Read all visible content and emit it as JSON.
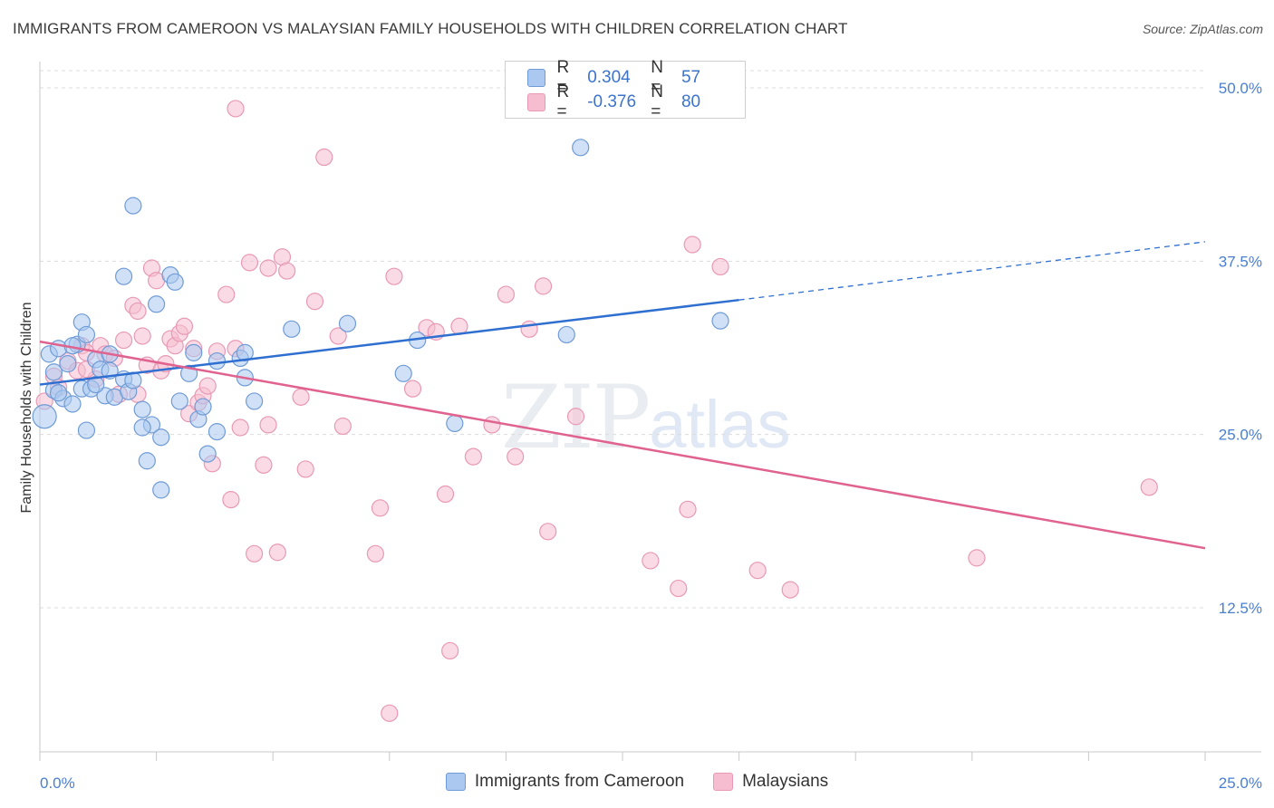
{
  "title": "IMMIGRANTS FROM CAMEROON VS MALAYSIAN FAMILY HOUSEHOLDS WITH CHILDREN CORRELATION CHART",
  "source": "Source: ZipAtlas.com",
  "watermark": {
    "zip": "ZIP",
    "atlas": "atlas"
  },
  "legend": [
    {
      "r_label": "R =",
      "r_value": "0.304",
      "n_label": "N =",
      "n_value": "57"
    },
    {
      "r_label": "R =",
      "r_value": "-0.376",
      "n_label": "N =",
      "n_value": "80"
    }
  ],
  "colors": {
    "blue_fill": "#aac8f0",
    "blue_stroke": "#6f9bd6",
    "blue_line": "#2f6fd0",
    "pink_fill": "#f6bdd0",
    "pink_stroke": "#e899b5",
    "pink_line": "#e0628e",
    "grid": "#dcdcdc",
    "tick_text": "#4a7fd0"
  },
  "chart_data": {
    "type": "scatter",
    "title": "IMMIGRANTS FROM CAMEROON VS MALAYSIAN FAMILY HOUSEHOLDS WITH CHILDREN CORRELATION CHART",
    "xlabel": "",
    "ylabel": "Family Households with Children",
    "xlim": [
      0,
      25
    ],
    "ylim": [
      0,
      52
    ],
    "x_tick_labels": [
      "0.0%",
      "25.0%"
    ],
    "y_ticks": [
      12.5,
      25.0,
      37.5,
      50.0
    ],
    "y_tick_labels": [
      "12.5%",
      "25.0%",
      "37.5%",
      "50.0%"
    ],
    "grid": true,
    "legend_position": "bottom",
    "series": [
      {
        "name": "Immigrants from Cameroon",
        "color": "#aac8f0",
        "trend": {
          "x_start": 0,
          "y_start": 28.6,
          "x_solid_end": 15.0,
          "y_solid_end": 34.7,
          "x_end": 25.0,
          "y_end": 38.9
        },
        "points": [
          [
            0.1,
            26.3
          ],
          [
            0.2,
            30.8
          ],
          [
            0.3,
            28.2
          ],
          [
            0.3,
            29.5
          ],
          [
            0.4,
            31.2
          ],
          [
            0.5,
            27.6
          ],
          [
            0.6,
            30.1
          ],
          [
            0.7,
            27.2
          ],
          [
            0.8,
            31.5
          ],
          [
            0.9,
            33.1
          ],
          [
            0.9,
            28.3
          ],
          [
            1.0,
            32.2
          ],
          [
            1.1,
            28.3
          ],
          [
            1.2,
            30.4
          ],
          [
            1.3,
            29.7
          ],
          [
            1.4,
            27.8
          ],
          [
            1.5,
            29.6
          ],
          [
            1.6,
            27.7
          ],
          [
            1.8,
            29.0
          ],
          [
            1.9,
            28.1
          ],
          [
            2.0,
            41.5
          ],
          [
            2.2,
            26.8
          ],
          [
            2.3,
            23.1
          ],
          [
            2.4,
            25.7
          ],
          [
            2.5,
            34.4
          ],
          [
            2.6,
            24.8
          ],
          [
            2.6,
            21.0
          ],
          [
            2.8,
            36.5
          ],
          [
            2.9,
            36.0
          ],
          [
            3.0,
            27.4
          ],
          [
            3.2,
            29.4
          ],
          [
            3.3,
            30.9
          ],
          [
            3.4,
            26.1
          ],
          [
            3.5,
            27.0
          ],
          [
            3.6,
            23.6
          ],
          [
            3.8,
            25.2
          ],
          [
            3.8,
            30.3
          ],
          [
            4.3,
            30.5
          ],
          [
            4.4,
            29.1
          ],
          [
            4.4,
            30.9
          ],
          [
            4.6,
            27.4
          ],
          [
            5.4,
            32.6
          ],
          [
            6.6,
            33.0
          ],
          [
            7.8,
            29.4
          ],
          [
            8.1,
            31.8
          ],
          [
            8.9,
            25.8
          ],
          [
            11.3,
            32.2
          ],
          [
            11.6,
            45.7
          ],
          [
            14.6,
            33.2
          ],
          [
            0.4,
            28.0
          ],
          [
            1.0,
            25.3
          ],
          [
            1.8,
            36.4
          ],
          [
            2.2,
            25.5
          ],
          [
            1.5,
            30.8
          ],
          [
            0.7,
            31.4
          ],
          [
            1.2,
            28.6
          ],
          [
            2.0,
            28.9
          ]
        ]
      },
      {
        "name": "Malaysians",
        "color": "#f6bdd0",
        "trend": {
          "x_start": 0,
          "y_start": 31.7,
          "x_end": 25.0,
          "y_end": 16.8
        },
        "points": [
          [
            0.1,
            27.4
          ],
          [
            0.3,
            29.2
          ],
          [
            0.4,
            28.4
          ],
          [
            0.6,
            30.3
          ],
          [
            0.8,
            29.6
          ],
          [
            0.9,
            31.4
          ],
          [
            1.0,
            30.9
          ],
          [
            1.2,
            29.0
          ],
          [
            1.3,
            31.4
          ],
          [
            1.4,
            30.8
          ],
          [
            1.6,
            30.5
          ],
          [
            1.7,
            27.9
          ],
          [
            1.8,
            31.8
          ],
          [
            2.0,
            34.3
          ],
          [
            2.1,
            33.9
          ],
          [
            2.2,
            32.1
          ],
          [
            2.3,
            30.0
          ],
          [
            2.4,
            37.0
          ],
          [
            2.5,
            36.1
          ],
          [
            2.6,
            29.6
          ],
          [
            2.7,
            30.1
          ],
          [
            2.8,
            31.9
          ],
          [
            2.9,
            31.4
          ],
          [
            3.0,
            32.3
          ],
          [
            3.1,
            32.8
          ],
          [
            3.2,
            26.5
          ],
          [
            3.3,
            31.2
          ],
          [
            3.4,
            27.3
          ],
          [
            3.5,
            27.8
          ],
          [
            3.6,
            28.5
          ],
          [
            3.7,
            22.9
          ],
          [
            3.8,
            31.0
          ],
          [
            4.0,
            35.1
          ],
          [
            4.1,
            20.3
          ],
          [
            4.2,
            31.2
          ],
          [
            4.3,
            25.5
          ],
          [
            4.5,
            37.4
          ],
          [
            4.6,
            16.4
          ],
          [
            4.8,
            22.8
          ],
          [
            4.9,
            37.0
          ],
          [
            4.9,
            25.7
          ],
          [
            5.1,
            16.5
          ],
          [
            5.2,
            37.8
          ],
          [
            5.3,
            36.8
          ],
          [
            5.6,
            27.7
          ],
          [
            5.7,
            22.5
          ],
          [
            5.9,
            34.6
          ],
          [
            6.1,
            45.0
          ],
          [
            6.4,
            32.1
          ],
          [
            6.5,
            25.6
          ],
          [
            7.2,
            16.4
          ],
          [
            7.3,
            19.7
          ],
          [
            7.5,
            4.9
          ],
          [
            7.6,
            36.4
          ],
          [
            8.0,
            28.3
          ],
          [
            8.3,
            32.7
          ],
          [
            8.5,
            32.4
          ],
          [
            8.7,
            20.7
          ],
          [
            8.8,
            9.4
          ],
          [
            9.0,
            32.8
          ],
          [
            9.3,
            23.4
          ],
          [
            9.7,
            25.7
          ],
          [
            10.0,
            35.1
          ],
          [
            10.2,
            23.4
          ],
          [
            10.5,
            32.6
          ],
          [
            10.8,
            35.7
          ],
          [
            10.9,
            18.0
          ],
          [
            11.5,
            26.3
          ],
          [
            13.1,
            15.9
          ],
          [
            13.7,
            13.9
          ],
          [
            13.9,
            19.6
          ],
          [
            14.0,
            38.7
          ],
          [
            14.6,
            37.1
          ],
          [
            15.4,
            15.2
          ],
          [
            16.1,
            13.8
          ],
          [
            20.1,
            16.1
          ],
          [
            23.8,
            21.2
          ],
          [
            4.2,
            48.5
          ],
          [
            2.1,
            27.9
          ],
          [
            1.0,
            29.7
          ]
        ]
      }
    ]
  }
}
